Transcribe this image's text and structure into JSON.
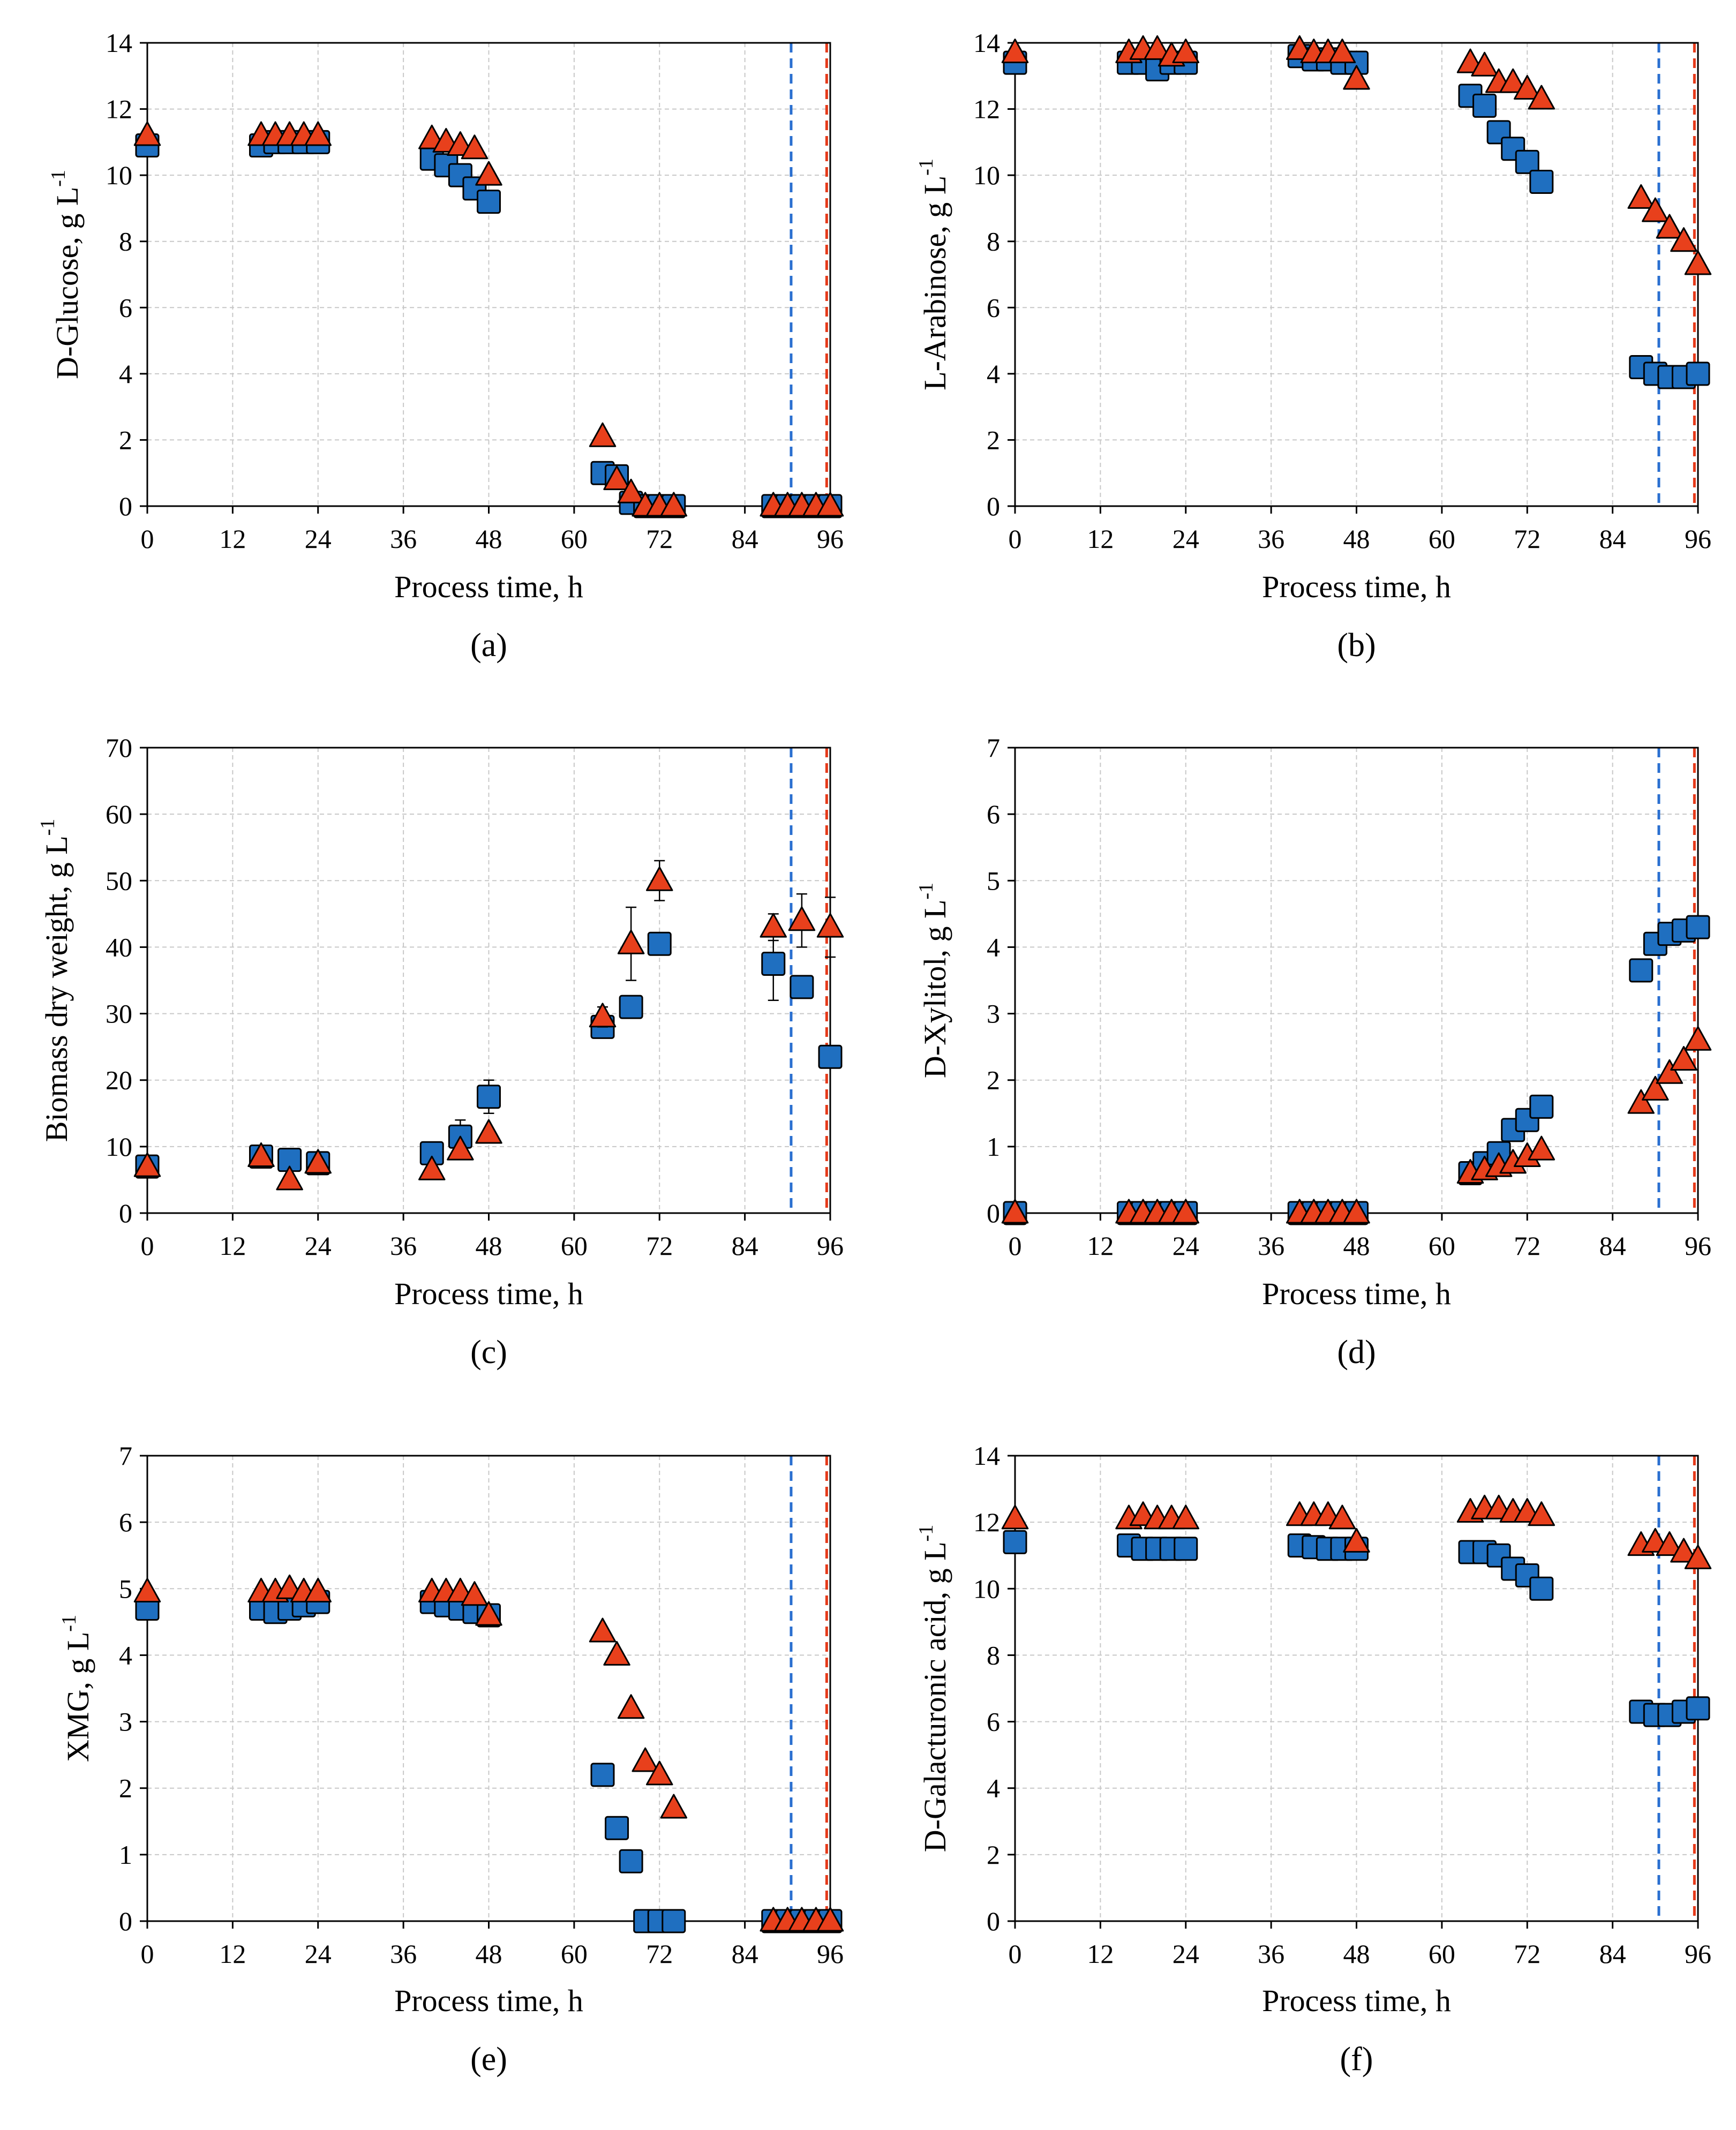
{
  "colors": {
    "series_a": "#1f6fc0",
    "series_b": "#e8401c",
    "vline_a": "#2a6fd0",
    "vline_b": "#e53a1a",
    "grid": "#c8c8c8"
  },
  "chart_data": [
    {
      "id": "a",
      "panel_label": "(a)",
      "type": "scatter",
      "xlabel": "Process time, h",
      "ylabel_pre": "D-Glucose, g L",
      "ylabel_sup": "-1",
      "xlim": [
        0,
        96
      ],
      "ylim": [
        0,
        14
      ],
      "xticks": [
        0,
        12,
        24,
        36,
        48,
        60,
        72,
        84,
        96
      ],
      "yticks": [
        0,
        2,
        4,
        6,
        8,
        10,
        12,
        14
      ],
      "vlines": [
        90.5,
        95.5
      ],
      "series": [
        {
          "name": "square",
          "marker": "square",
          "x": [
            0,
            16,
            18,
            20,
            22,
            24,
            40,
            42,
            44,
            46,
            48,
            64,
            66,
            68,
            70,
            72,
            74,
            88,
            90,
            92,
            94,
            96
          ],
          "y": [
            10.9,
            10.9,
            11.0,
            11.0,
            11.0,
            11.0,
            10.5,
            10.3,
            10.0,
            9.6,
            9.2,
            1.0,
            0.9,
            0.1,
            0,
            0,
            0,
            0,
            0,
            0,
            0,
            0
          ]
        },
        {
          "name": "triangle",
          "marker": "triangle",
          "x": [
            0,
            16,
            18,
            20,
            22,
            24,
            40,
            42,
            44,
            46,
            48,
            64,
            66,
            68,
            70,
            72,
            74,
            88,
            90,
            92,
            94,
            96
          ],
          "y": [
            11.2,
            11.2,
            11.2,
            11.2,
            11.2,
            11.2,
            11.1,
            11.0,
            10.9,
            10.8,
            10.0,
            2.1,
            0.8,
            0.4,
            0,
            0,
            0,
            0,
            0,
            0,
            0,
            0
          ]
        }
      ]
    },
    {
      "id": "b",
      "panel_label": "(b)",
      "type": "scatter",
      "xlabel": "Process time, h",
      "ylabel_pre": "L-Arabinose, g L",
      "ylabel_sup": "-1",
      "xlim": [
        0,
        96
      ],
      "ylim": [
        0,
        14
      ],
      "xticks": [
        0,
        12,
        24,
        36,
        48,
        60,
        72,
        84,
        96
      ],
      "yticks": [
        0,
        2,
        4,
        6,
        8,
        10,
        12,
        14
      ],
      "vlines": [
        90.5,
        95.5
      ],
      "series": [
        {
          "name": "square",
          "marker": "square",
          "x": [
            0,
            16,
            18,
            20,
            22,
            24,
            40,
            42,
            44,
            46,
            48,
            64,
            66,
            68,
            70,
            72,
            74,
            88,
            90,
            92,
            94,
            96
          ],
          "y": [
            13.4,
            13.4,
            13.4,
            13.2,
            13.4,
            13.4,
            13.6,
            13.5,
            13.5,
            13.4,
            13.4,
            12.4,
            12.1,
            11.3,
            10.8,
            10.4,
            9.8,
            4.2,
            4.0,
            3.9,
            3.9,
            4.0
          ]
        },
        {
          "name": "triangle",
          "marker": "triangle",
          "x": [
            0,
            16,
            18,
            20,
            22,
            24,
            40,
            42,
            44,
            46,
            48,
            64,
            66,
            68,
            70,
            72,
            74,
            88,
            90,
            92,
            94,
            96
          ],
          "y": [
            13.7,
            13.7,
            13.8,
            13.8,
            13.6,
            13.7,
            13.8,
            13.7,
            13.7,
            13.7,
            12.9,
            13.4,
            13.3,
            12.8,
            12.8,
            12.6,
            12.3,
            9.3,
            8.9,
            8.4,
            8.0,
            7.3
          ]
        }
      ]
    },
    {
      "id": "c",
      "panel_label": "(c)",
      "type": "scatter",
      "xlabel": "Process time, h",
      "ylabel_pre": "Biomass dry weight, g L",
      "ylabel_sup": "-1",
      "xlim": [
        0,
        96
      ],
      "ylim": [
        0,
        70
      ],
      "xticks": [
        0,
        12,
        24,
        36,
        48,
        60,
        72,
        84,
        96
      ],
      "yticks": [
        0,
        10,
        20,
        30,
        40,
        50,
        60,
        70
      ],
      "vlines": [
        90.5,
        95.5
      ],
      "series": [
        {
          "name": "square",
          "marker": "square",
          "x": [
            0,
            16,
            20,
            24,
            40,
            44,
            48,
            64,
            68,
            72,
            88,
            92,
            96
          ],
          "y": [
            7.0,
            8.5,
            8.0,
            7.5,
            9.0,
            11.5,
            17.5,
            28.0,
            31.0,
            40.5,
            37.5,
            34.0,
            23.5
          ],
          "err": [
            0,
            0,
            0,
            0,
            0,
            2.5,
            2.5,
            0,
            0,
            0,
            5.5,
            0,
            0
          ]
        },
        {
          "name": "triangle",
          "marker": "triangle",
          "x": [
            0,
            16,
            20,
            24,
            40,
            44,
            48,
            64,
            68,
            72,
            88,
            92,
            96
          ],
          "y": [
            7.0,
            8.5,
            5.0,
            7.5,
            6.5,
            9.5,
            12.0,
            29.5,
            40.5,
            50.0,
            43.0,
            44.0,
            43.0
          ],
          "err": [
            0,
            0,
            0,
            0,
            0,
            0,
            0,
            1.5,
            5.5,
            3.0,
            2.0,
            4.0,
            4.5
          ]
        }
      ]
    },
    {
      "id": "d",
      "panel_label": "(d)",
      "type": "scatter",
      "xlabel": "Process time, h",
      "ylabel_pre": "D-Xylitol, g L",
      "ylabel_sup": "-1",
      "xlim": [
        0,
        96
      ],
      "ylim": [
        0,
        7
      ],
      "xticks": [
        0,
        12,
        24,
        36,
        48,
        60,
        72,
        84,
        96
      ],
      "yticks": [
        0,
        1,
        2,
        3,
        4,
        5,
        6,
        7
      ],
      "vlines": [
        90.5,
        95.5
      ],
      "series": [
        {
          "name": "square",
          "marker": "square",
          "x": [
            0,
            16,
            18,
            20,
            22,
            24,
            40,
            42,
            44,
            46,
            48,
            64,
            66,
            68,
            70,
            72,
            74,
            88,
            90,
            92,
            94,
            96
          ],
          "y": [
            0,
            0,
            0,
            0,
            0,
            0,
            0,
            0,
            0,
            0,
            0,
            0.6,
            0.75,
            0.9,
            1.25,
            1.4,
            1.6,
            3.65,
            4.05,
            4.2,
            4.25,
            4.3
          ]
        },
        {
          "name": "triangle",
          "marker": "triangle",
          "x": [
            0,
            16,
            18,
            20,
            22,
            24,
            40,
            42,
            44,
            46,
            48,
            64,
            66,
            68,
            70,
            72,
            74,
            88,
            90,
            92,
            94,
            96
          ],
          "y": [
            0,
            0,
            0,
            0,
            0,
            0,
            0,
            0,
            0,
            0,
            0,
            0.6,
            0.65,
            0.7,
            0.75,
            0.85,
            0.95,
            1.65,
            1.85,
            2.1,
            2.3,
            2.6
          ]
        }
      ]
    },
    {
      "id": "e",
      "panel_label": "(e)",
      "type": "scatter",
      "xlabel": "Process time, h",
      "ylabel_pre": "XMG, g L",
      "ylabel_sup": "-1",
      "xlim": [
        0,
        96
      ],
      "ylim": [
        0,
        7
      ],
      "xticks": [
        0,
        12,
        24,
        36,
        48,
        60,
        72,
        84,
        96
      ],
      "yticks": [
        0,
        1,
        2,
        3,
        4,
        5,
        6,
        7
      ],
      "vlines": [
        90.5,
        95.5
      ],
      "series": [
        {
          "name": "square",
          "marker": "square",
          "x": [
            0,
            16,
            18,
            20,
            22,
            24,
            40,
            42,
            44,
            46,
            48,
            64,
            66,
            68,
            70,
            72,
            74,
            88,
            90,
            92,
            94,
            96
          ],
          "y": [
            4.7,
            4.7,
            4.65,
            4.7,
            4.75,
            4.8,
            4.8,
            4.75,
            4.7,
            4.65,
            4.6,
            2.2,
            1.4,
            0.9,
            0,
            0,
            0,
            0,
            0,
            0,
            0,
            0
          ]
        },
        {
          "name": "triangle",
          "marker": "triangle",
          "x": [
            0,
            16,
            18,
            20,
            22,
            24,
            40,
            42,
            44,
            46,
            48,
            64,
            66,
            68,
            70,
            72,
            74,
            88,
            90,
            92,
            94,
            96
          ],
          "y": [
            4.95,
            4.95,
            4.95,
            5.0,
            4.95,
            4.95,
            4.95,
            4.95,
            4.95,
            4.9,
            4.6,
            4.35,
            4.0,
            3.2,
            2.4,
            2.2,
            1.7,
            0,
            0,
            0,
            0,
            0
          ]
        }
      ]
    },
    {
      "id": "f",
      "panel_label": "(f)",
      "type": "scatter",
      "xlabel": "Process time, h",
      "ylabel_pre": "D-Galacturonic acid, g L",
      "ylabel_sup": "-1",
      "xlim": [
        0,
        96
      ],
      "ylim": [
        0,
        14
      ],
      "xticks": [
        0,
        12,
        24,
        36,
        48,
        60,
        72,
        84,
        96
      ],
      "yticks": [
        0,
        2,
        4,
        6,
        8,
        10,
        12,
        14
      ],
      "vlines": [
        90.5,
        95.5
      ],
      "series": [
        {
          "name": "square",
          "marker": "square",
          "x": [
            0,
            16,
            18,
            20,
            22,
            24,
            40,
            42,
            44,
            46,
            48,
            64,
            66,
            68,
            70,
            72,
            74,
            88,
            90,
            92,
            94,
            96
          ],
          "y": [
            11.4,
            11.3,
            11.2,
            11.2,
            11.2,
            11.2,
            11.3,
            11.25,
            11.2,
            11.2,
            11.2,
            11.1,
            11.1,
            11.0,
            10.6,
            10.4,
            10.0,
            6.3,
            6.2,
            6.2,
            6.3,
            6.4
          ]
        },
        {
          "name": "triangle",
          "marker": "triangle",
          "x": [
            0,
            16,
            18,
            20,
            22,
            24,
            40,
            42,
            44,
            46,
            48,
            64,
            66,
            68,
            70,
            72,
            74,
            88,
            90,
            92,
            94,
            96
          ],
          "y": [
            12.1,
            12.1,
            12.2,
            12.1,
            12.1,
            12.1,
            12.2,
            12.2,
            12.2,
            12.1,
            11.4,
            12.3,
            12.4,
            12.4,
            12.3,
            12.3,
            12.2,
            11.3,
            11.4,
            11.3,
            11.1,
            10.9
          ]
        }
      ]
    }
  ]
}
